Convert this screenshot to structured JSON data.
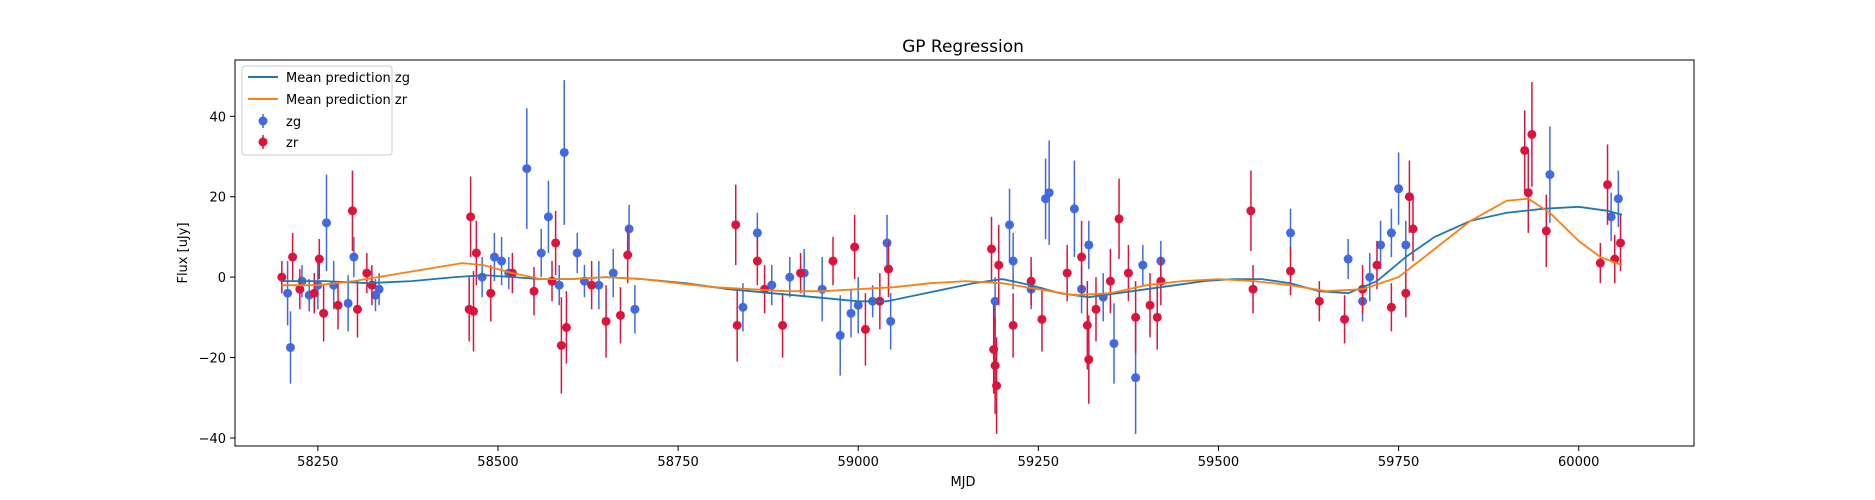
{
  "chart_data": {
    "type": "scatter",
    "title": "GP Regression",
    "xlabel": "MJD",
    "ylabel": "Flux [uJy]",
    "xlim": [
      58135,
      60160
    ],
    "ylim": [
      -42,
      54
    ],
    "xticks": [
      58250,
      58500,
      58750,
      59000,
      59250,
      59500,
      59750,
      60000
    ],
    "yticks": [
      -40,
      -20,
      0,
      20,
      40
    ],
    "grid": false,
    "legend": "top-left",
    "legend_entries": [
      "Mean prediction zg",
      "Mean prediction zr",
      "zg",
      "zr"
    ],
    "colors": {
      "mean_zg": "#1f77b4",
      "mean_zr": "#ff7f0e",
      "zg": "#4169e1",
      "zr": "#dc143c"
    },
    "series": [
      {
        "name": "Mean prediction zg",
        "type": "line",
        "x": [
          58200,
          58260,
          58320,
          58380,
          58440,
          58480,
          58520,
          58560,
          58600,
          58650,
          58700,
          58760,
          58820,
          58880,
          58940,
          59000,
          59040,
          59080,
          59120,
          59160,
          59200,
          59240,
          59280,
          59320,
          59360,
          59400,
          59440,
          59480,
          59520,
          59560,
          59600,
          59640,
          59680,
          59720,
          59760,
          59800,
          59850,
          59900,
          59950,
          60000,
          60040,
          60060
        ],
        "y": [
          -1,
          -1,
          -1.5,
          -1,
          0,
          0.5,
          0,
          -0.5,
          -0.5,
          0,
          -0.5,
          -1.5,
          -3,
          -4,
          -5,
          -6,
          -6,
          -4.5,
          -3,
          -1.5,
          -0.5,
          -2,
          -4,
          -5,
          -4,
          -3,
          -2,
          -1,
          -0.5,
          -0.5,
          -1.5,
          -3.5,
          -4,
          -1,
          5,
          10,
          14,
          16,
          17,
          17.5,
          16.5,
          15.5
        ]
      },
      {
        "name": "Mean prediction zr",
        "type": "line",
        "x": [
          58200,
          58250,
          58300,
          58350,
          58400,
          58450,
          58480,
          58520,
          58560,
          58600,
          58650,
          58700,
          58750,
          58800,
          58850,
          58900,
          58950,
          59000,
          59050,
          59100,
          59150,
          59200,
          59250,
          59300,
          59350,
          59400,
          59450,
          59500,
          59550,
          59600,
          59650,
          59700,
          59750,
          59800,
          59850,
          59900,
          59930,
          59960,
          60000,
          60030,
          60060
        ],
        "y": [
          -2,
          -2,
          -1,
          0.5,
          2,
          3.5,
          3,
          1,
          -0.5,
          -0.5,
          0,
          -0.5,
          -1.5,
          -2.5,
          -3,
          -3.5,
          -3.5,
          -3,
          -2.5,
          -1.5,
          -1,
          -1.5,
          -3,
          -4.5,
          -4,
          -2,
          -1,
          -0.5,
          -1,
          -2,
          -3.5,
          -3,
          0,
          7,
          14,
          19,
          19.5,
          16,
          9,
          5,
          3
        ]
      },
      {
        "name": "zg",
        "type": "errorbar",
        "points": [
          [
            58208,
            -4,
            8
          ],
          [
            58212,
            -17.5,
            9
          ],
          [
            58228,
            -1,
            4
          ],
          [
            58238,
            -4.5,
            4
          ],
          [
            58250,
            -2,
            6
          ],
          [
            58262,
            13.5,
            12
          ],
          [
            58272,
            -2,
            6
          ],
          [
            58292,
            -6.5,
            7
          ],
          [
            58300,
            5,
            5
          ],
          [
            58330,
            -4.5,
            4
          ],
          [
            58335,
            -3,
            4
          ],
          [
            58478,
            0,
            5
          ],
          [
            58495,
            5,
            6
          ],
          [
            58505,
            4,
            6
          ],
          [
            58515,
            1,
            4
          ],
          [
            58540,
            27,
            15
          ],
          [
            58560,
            6,
            6
          ],
          [
            58570,
            15,
            9
          ],
          [
            58585,
            -2,
            5
          ],
          [
            58592,
            31,
            18
          ],
          [
            58610,
            6,
            5
          ],
          [
            58620,
            -1,
            4
          ],
          [
            58640,
            -2,
            6
          ],
          [
            58660,
            1,
            6
          ],
          [
            58682,
            12,
            6
          ],
          [
            58690,
            -8,
            6
          ],
          [
            58840,
            -7.5,
            6
          ],
          [
            58860,
            11,
            5
          ],
          [
            58880,
            -2,
            5
          ],
          [
            58905,
            0,
            5
          ],
          [
            58925,
            1,
            6
          ],
          [
            58950,
            -3,
            8
          ],
          [
            58975,
            -14.5,
            10
          ],
          [
            58990,
            -9,
            6
          ],
          [
            59000,
            -7,
            7
          ],
          [
            59020,
            -6,
            4
          ],
          [
            59040,
            8.5,
            7
          ],
          [
            59045,
            -11,
            7
          ],
          [
            59190,
            -6,
            6
          ],
          [
            59210,
            13,
            9
          ],
          [
            59215,
            4,
            7
          ],
          [
            59240,
            -3,
            5
          ],
          [
            59260,
            19.5,
            10
          ],
          [
            59265,
            21,
            13
          ],
          [
            59300,
            17,
            12
          ],
          [
            59310,
            -3,
            6
          ],
          [
            59320,
            8,
            6
          ],
          [
            59340,
            -5,
            6
          ],
          [
            59355,
            -16.5,
            10
          ],
          [
            59385,
            -25,
            14
          ],
          [
            59395,
            3,
            5
          ],
          [
            59420,
            4,
            5
          ],
          [
            59600,
            11,
            6
          ],
          [
            59680,
            4.5,
            5
          ],
          [
            59700,
            -6,
            5
          ],
          [
            59710,
            0,
            6
          ],
          [
            59725,
            8,
            6
          ],
          [
            59740,
            11,
            6
          ],
          [
            59750,
            22,
            9
          ],
          [
            59760,
            8,
            6
          ],
          [
            59960,
            25.5,
            12
          ],
          [
            60045,
            15,
            6
          ],
          [
            60055,
            19.5,
            7
          ]
        ]
      },
      {
        "name": "zr",
        "type": "errorbar",
        "points": [
          [
            58200,
            0,
            4
          ],
          [
            58215,
            5,
            6
          ],
          [
            58225,
            -3,
            5
          ],
          [
            58245,
            -4,
            5
          ],
          [
            58252,
            4.5,
            5
          ],
          [
            58258,
            -9,
            7
          ],
          [
            58278,
            -7,
            6
          ],
          [
            58298,
            16.5,
            10
          ],
          [
            58305,
            -8,
            7
          ],
          [
            58318,
            1,
            5
          ],
          [
            58325,
            -2,
            5
          ],
          [
            58460,
            -8,
            8
          ],
          [
            58462,
            15,
            10
          ],
          [
            58466,
            -8.5,
            10
          ],
          [
            58470,
            6,
            8
          ],
          [
            58490,
            -4,
            7
          ],
          [
            58520,
            1,
            5
          ],
          [
            58550,
            -3.5,
            6
          ],
          [
            58575,
            -1,
            5
          ],
          [
            58580,
            8.5,
            8
          ],
          [
            58588,
            -17,
            12
          ],
          [
            58595,
            -12.5,
            9
          ],
          [
            58630,
            -2,
            6
          ],
          [
            58650,
            -11,
            9
          ],
          [
            58670,
            -9.5,
            7
          ],
          [
            58680,
            5.5,
            7
          ],
          [
            58830,
            13,
            10
          ],
          [
            58832,
            -12,
            9
          ],
          [
            58860,
            4,
            6
          ],
          [
            58870,
            -3,
            6
          ],
          [
            58895,
            -12,
            8
          ],
          [
            58920,
            1,
            5
          ],
          [
            58965,
            4,
            6
          ],
          [
            58995,
            7.5,
            8
          ],
          [
            59010,
            -13,
            9
          ],
          [
            59030,
            -6,
            7
          ],
          [
            59042,
            2,
            7
          ],
          [
            59185,
            7,
            8
          ],
          [
            59188,
            -18,
            11
          ],
          [
            59190,
            -22,
            12
          ],
          [
            59192,
            -27,
            12
          ],
          [
            59195,
            3,
            10
          ],
          [
            59215,
            -12,
            8
          ],
          [
            59240,
            -1,
            6
          ],
          [
            59255,
            -10.5,
            8
          ],
          [
            59290,
            1,
            7
          ],
          [
            59310,
            5,
            9
          ],
          [
            59318,
            -12,
            11
          ],
          [
            59320,
            -20.5,
            11
          ],
          [
            59330,
            -8,
            8
          ],
          [
            59350,
            -1,
            8
          ],
          [
            59362,
            14.5,
            10
          ],
          [
            59375,
            1,
            7
          ],
          [
            59385,
            -10,
            9
          ],
          [
            59405,
            -7,
            8
          ],
          [
            59415,
            -10,
            8
          ],
          [
            59420,
            -1,
            6
          ],
          [
            59545,
            16.5,
            10
          ],
          [
            59548,
            -3,
            6
          ],
          [
            59600,
            1.5,
            6
          ],
          [
            59640,
            -6,
            5
          ],
          [
            59675,
            -10.5,
            6
          ],
          [
            59700,
            -3,
            6
          ],
          [
            59720,
            3,
            6
          ],
          [
            59740,
            -7.5,
            6
          ],
          [
            59760,
            -4,
            6
          ],
          [
            59765,
            20,
            9
          ],
          [
            59770,
            12,
            8
          ],
          [
            59925,
            31.5,
            10
          ],
          [
            59930,
            21,
            10
          ],
          [
            59935,
            35.5,
            13
          ],
          [
            59955,
            11.5,
            9
          ],
          [
            60030,
            3.5,
            5
          ],
          [
            60040,
            23,
            10
          ],
          [
            60050,
            4.5,
            6
          ],
          [
            60058,
            8.5,
            7
          ]
        ]
      }
    ]
  }
}
